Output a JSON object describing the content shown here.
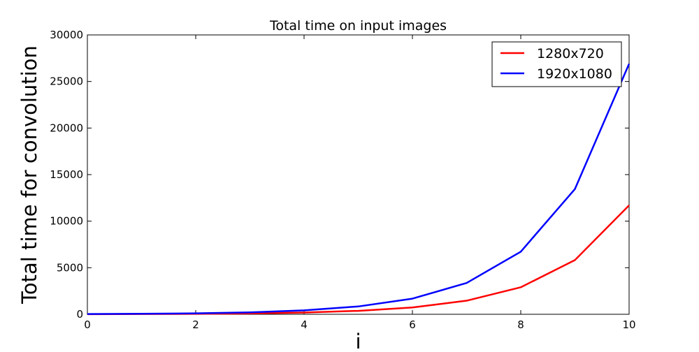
{
  "chart_data": {
    "type": "line",
    "title": "Total time on input images",
    "xlabel": "i",
    "ylabel": "Total time for convolution",
    "x": [
      0,
      1,
      2,
      3,
      4,
      5,
      6,
      7,
      8,
      9,
      10
    ],
    "xlim": [
      0,
      10
    ],
    "ylim": [
      0,
      30000
    ],
    "xticks": [
      0,
      2,
      4,
      6,
      8,
      10
    ],
    "yticks": [
      0,
      5000,
      10000,
      15000,
      20000,
      25000,
      30000
    ],
    "grid": false,
    "legend_position": "top-right",
    "series": [
      {
        "name": "1280x720",
        "color": "#ff0000",
        "values": [
          12,
          24,
          46,
          92,
          184,
          370,
          730,
          1460,
          2900,
          5820,
          11700
        ]
      },
      {
        "name": "1920x1080",
        "color": "#0000ff",
        "values": [
          27,
          53,
          105,
          210,
          420,
          840,
          1680,
          3360,
          6720,
          13450,
          26900
        ]
      }
    ]
  }
}
